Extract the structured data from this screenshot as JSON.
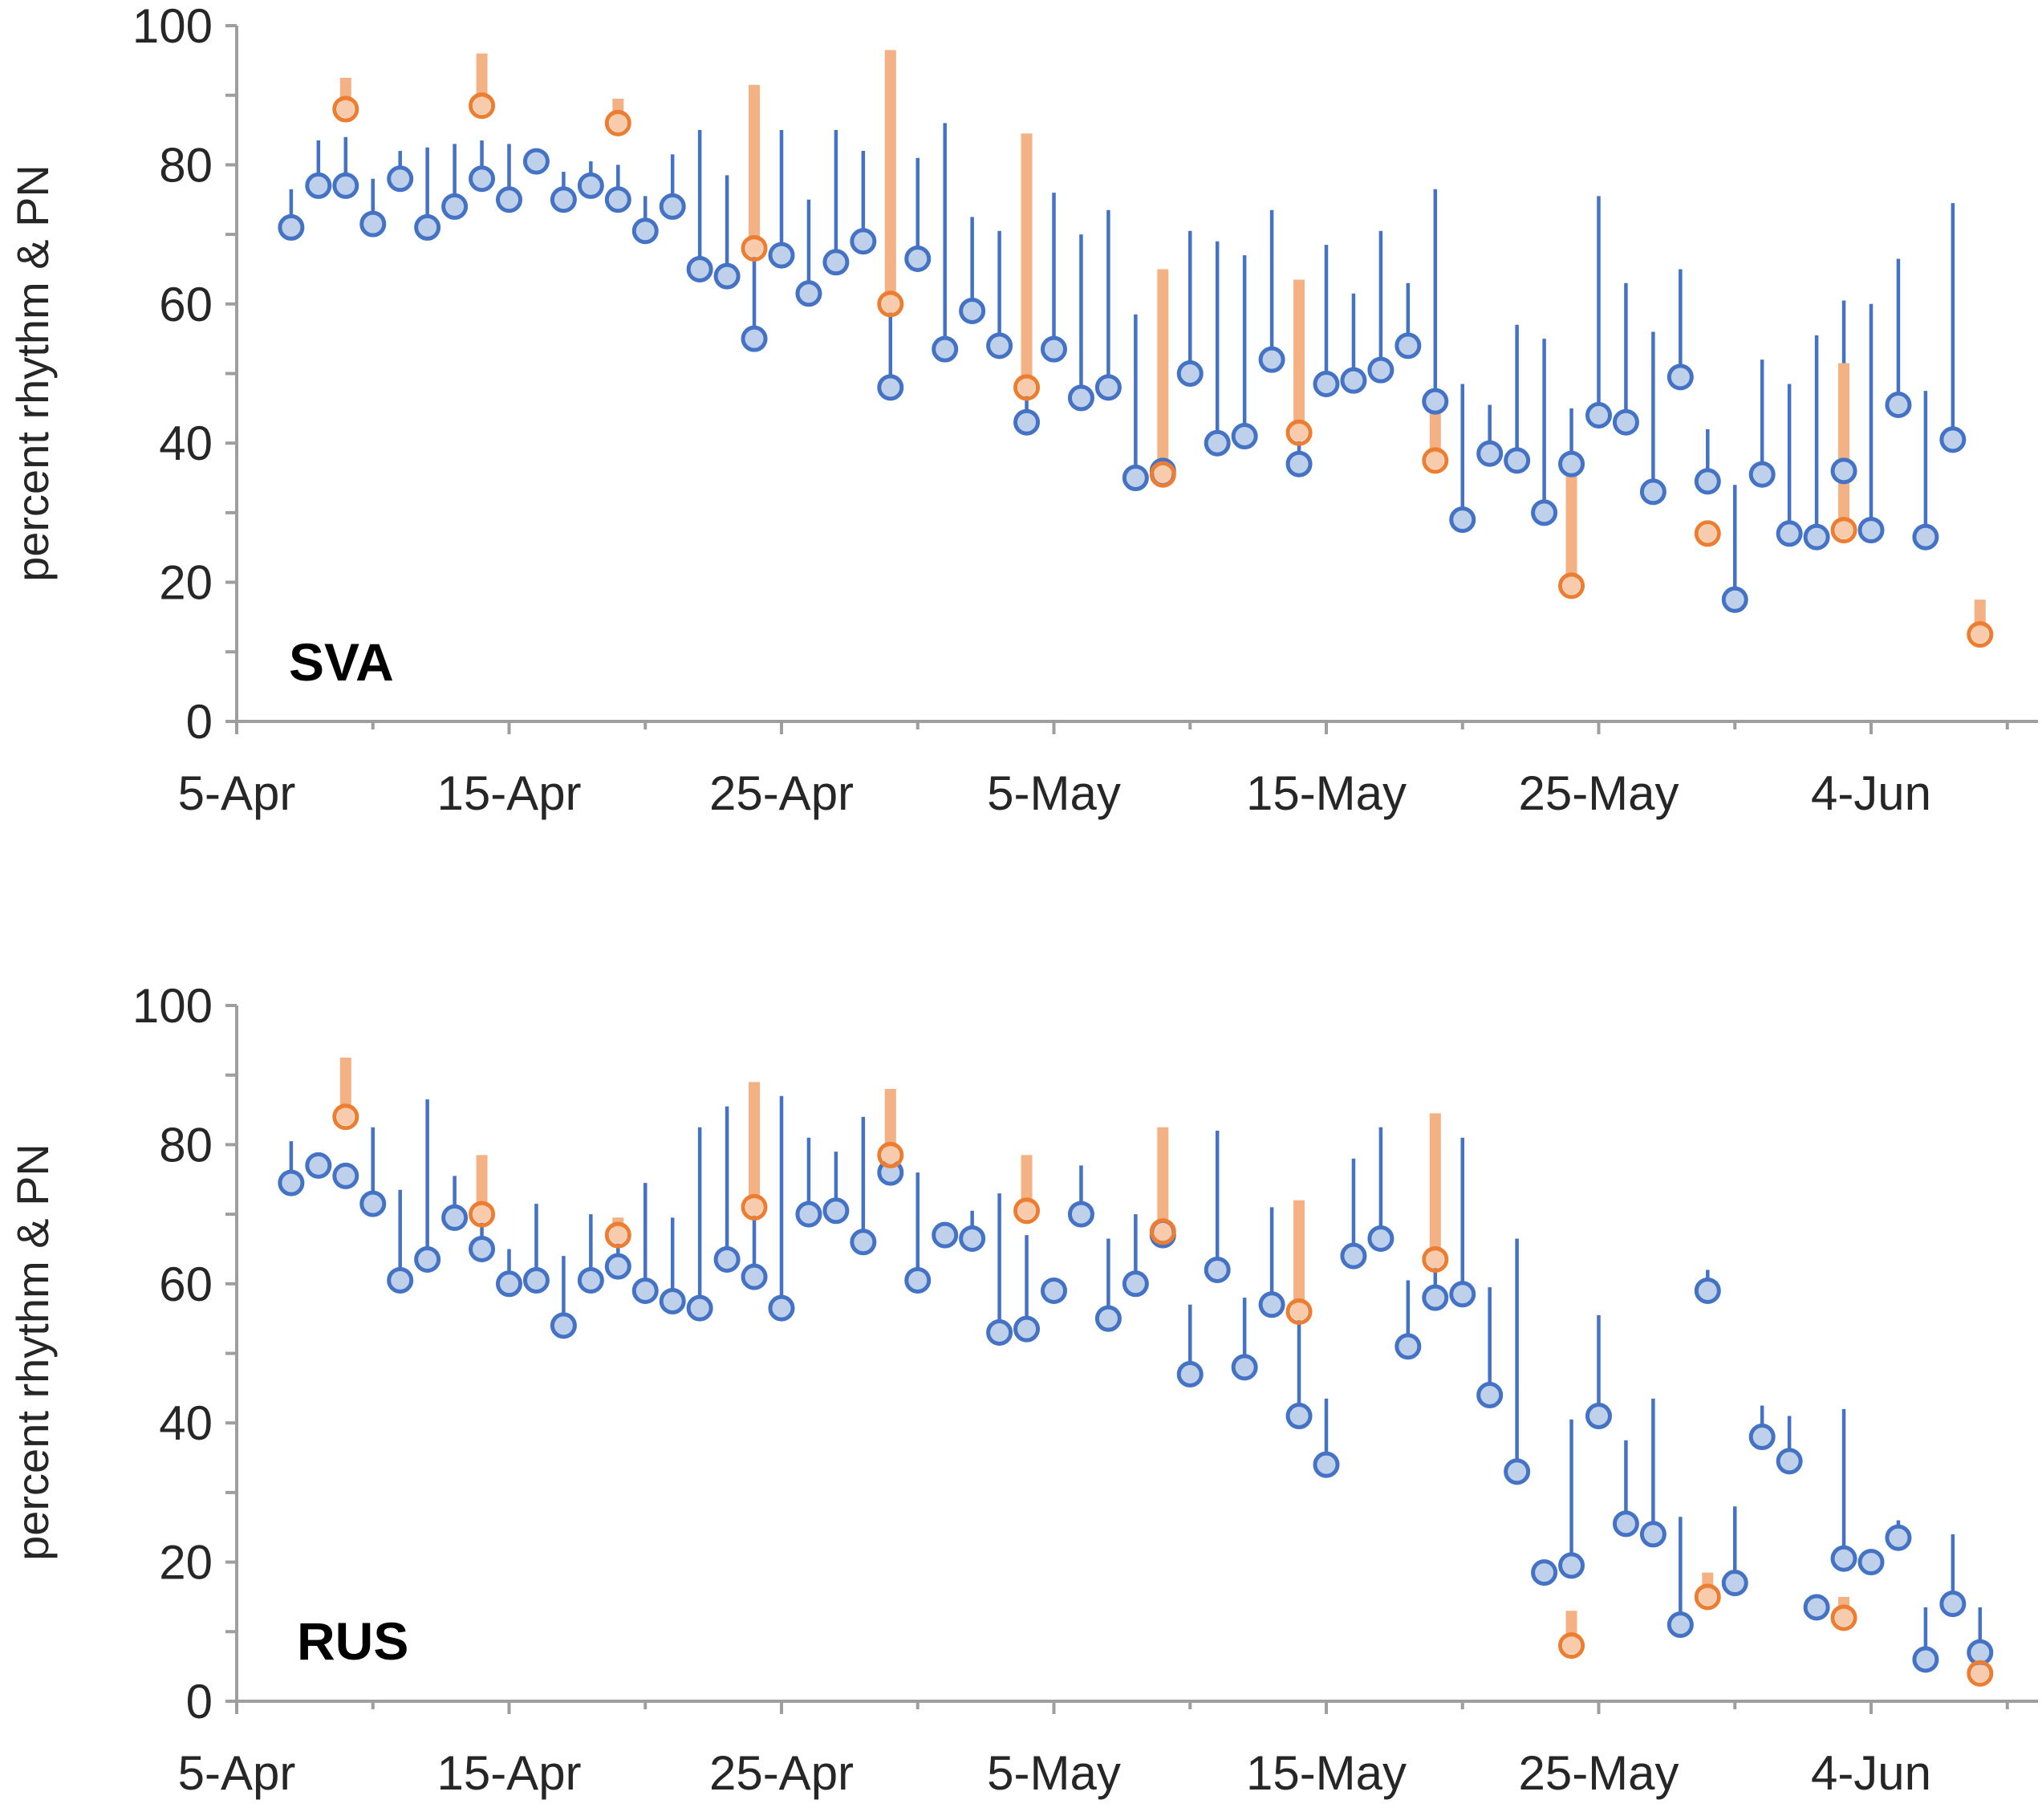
{
  "colors": {
    "blue": "#4472C4",
    "orange": "#ED7D31",
    "orange_bar": "#F4B183",
    "axis": "#9E9E9E"
  },
  "chart_data": [
    {
      "type": "scatter",
      "panel_label": "SVA",
      "ylabel": "percent rhythm & PN",
      "ylim": [
        0,
        100
      ],
      "y_ticks": [
        0,
        20,
        40,
        60,
        80,
        100
      ],
      "y_tick_labels": [
        "0",
        "20",
        "40",
        "60",
        "80",
        "100"
      ],
      "x_domain_days": [
        0,
        65
      ],
      "x_ticks": [
        0,
        10,
        20,
        30,
        40,
        50,
        60
      ],
      "x_tick_labels": [
        "5-Apr",
        "15-Apr",
        "25-Apr",
        "5-May",
        "15-May",
        "25-May",
        "4-Jun"
      ],
      "x_unit": "days since 5-Apr",
      "series": [
        {
          "name": "percent rhythm",
          "color": "blue",
          "points": [
            {
              "x": 2,
              "y": 71,
              "hi": 76.5
            },
            {
              "x": 3,
              "y": 77,
              "hi": 83.5
            },
            {
              "x": 4,
              "y": 77,
              "hi": 84
            },
            {
              "x": 5,
              "y": 71.5,
              "hi": 78
            },
            {
              "x": 6,
              "y": 78,
              "hi": 82
            },
            {
              "x": 7,
              "y": 71,
              "hi": 82.5
            },
            {
              "x": 8,
              "y": 74,
              "hi": 83
            },
            {
              "x": 9,
              "y": 78,
              "hi": 83.5
            },
            {
              "x": 10,
              "y": 75,
              "hi": 83
            },
            {
              "x": 11,
              "y": 80.5,
              "hi": 82
            },
            {
              "x": 12,
              "y": 75,
              "hi": 79
            },
            {
              "x": 13,
              "y": 77,
              "hi": 80.5
            },
            {
              "x": 14,
              "y": 75,
              "hi": 80
            },
            {
              "x": 15,
              "y": 70.5,
              "hi": 75.5
            },
            {
              "x": 16,
              "y": 74,
              "hi": 81.5
            },
            {
              "x": 17,
              "y": 65,
              "hi": 85
            },
            {
              "x": 18,
              "y": 64,
              "hi": 78.5
            },
            {
              "x": 19,
              "y": 55,
              "hi": 80
            },
            {
              "x": 20,
              "y": 67,
              "hi": 85
            },
            {
              "x": 21,
              "y": 61.5,
              "hi": 75
            },
            {
              "x": 22,
              "y": 66,
              "hi": 85
            },
            {
              "x": 23,
              "y": 69,
              "hi": 82
            },
            {
              "x": 24,
              "y": 48,
              "hi": 85
            },
            {
              "x": 25,
              "y": 66.5,
              "hi": 81
            },
            {
              "x": 26,
              "y": 53.5,
              "hi": 86
            },
            {
              "x": 27,
              "y": 59,
              "hi": 72.5
            },
            {
              "x": 28,
              "y": 54,
              "hi": 70.5
            },
            {
              "x": 29,
              "y": 43,
              "hi": 64
            },
            {
              "x": 30,
              "y": 53.5,
              "hi": 76
            },
            {
              "x": 31,
              "y": 46.5,
              "hi": 70
            },
            {
              "x": 32,
              "y": 48,
              "hi": 73.5
            },
            {
              "x": 33,
              "y": 35,
              "hi": 58.5
            },
            {
              "x": 34,
              "y": 36,
              "hi": 54.5
            },
            {
              "x": 35,
              "y": 50,
              "hi": 70.5
            },
            {
              "x": 36,
              "y": 40,
              "hi": 69
            },
            {
              "x": 37,
              "y": 41,
              "hi": 67
            },
            {
              "x": 38,
              "y": 52,
              "hi": 73.5
            },
            {
              "x": 39,
              "y": 37,
              "hi": 50
            },
            {
              "x": 40,
              "y": 48.5,
              "hi": 68.5
            },
            {
              "x": 41,
              "y": 49,
              "hi": 61.5
            },
            {
              "x": 42,
              "y": 50.5,
              "hi": 70.5
            },
            {
              "x": 43,
              "y": 54,
              "hi": 63
            },
            {
              "x": 44,
              "y": 46,
              "hi": 76.5
            },
            {
              "x": 45,
              "y": 29,
              "hi": 48.5
            },
            {
              "x": 46,
              "y": 38.5,
              "hi": 45.5
            },
            {
              "x": 47,
              "y": 37.5,
              "hi": 57
            },
            {
              "x": 48,
              "y": 30,
              "hi": 55
            },
            {
              "x": 49,
              "y": 37,
              "hi": 45
            },
            {
              "x": 50,
              "y": 44,
              "hi": 75.5
            },
            {
              "x": 51,
              "y": 43,
              "hi": 63
            },
            {
              "x": 52,
              "y": 33,
              "hi": 56
            },
            {
              "x": 53,
              "y": 49.5,
              "hi": 65
            },
            {
              "x": 54,
              "y": 34.5,
              "hi": 42
            },
            {
              "x": 55,
              "y": 17.5,
              "hi": 34
            },
            {
              "x": 56,
              "y": 35.5,
              "hi": 52
            },
            {
              "x": 57,
              "y": 27,
              "hi": 48.5
            },
            {
              "x": 58,
              "y": 26.5,
              "hi": 55.5
            },
            {
              "x": 59,
              "y": 36,
              "hi": 60.5
            },
            {
              "x": 60,
              "y": 27.5,
              "hi": 60
            },
            {
              "x": 61,
              "y": 45.5,
              "hi": 66.5
            },
            {
              "x": 62,
              "y": 26.5,
              "hi": 47.5
            },
            {
              "x": 63,
              "y": 40.5,
              "hi": 74.5
            }
          ]
        },
        {
          "name": "PN",
          "color": "orange",
          "points": [
            {
              "x": 4,
              "y": 88,
              "hi": 92.5
            },
            {
              "x": 9,
              "y": 88.5,
              "hi": 96
            },
            {
              "x": 14,
              "y": 86,
              "hi": 89.5
            },
            {
              "x": 19,
              "y": 68,
              "hi": 91.5
            },
            {
              "x": 24,
              "y": 60,
              "hi": 96.5
            },
            {
              "x": 29,
              "y": 48,
              "hi": 84.5
            },
            {
              "x": 34,
              "y": 35.5,
              "hi": 65
            },
            {
              "x": 39,
              "y": 41.5,
              "hi": 63.5
            },
            {
              "x": 44,
              "y": 37.5,
              "hi": 46
            },
            {
              "x": 49,
              "y": 19.5,
              "hi": 36
            },
            {
              "x": 54,
              "y": 27,
              "hi": 27.5
            },
            {
              "x": 59,
              "y": 27.5,
              "hi": 51.5
            },
            {
              "x": 64,
              "y": 12.5,
              "hi": 17.5
            }
          ]
        }
      ]
    },
    {
      "type": "scatter",
      "panel_label": "RUS",
      "ylabel": "percent rhythm & PN",
      "ylim": [
        0,
        100
      ],
      "y_ticks": [
        0,
        20,
        40,
        60,
        80,
        100
      ],
      "y_tick_labels": [
        "0",
        "20",
        "40",
        "60",
        "80",
        "100"
      ],
      "x_domain_days": [
        0,
        65
      ],
      "x_ticks": [
        0,
        10,
        20,
        30,
        40,
        50,
        60
      ],
      "x_tick_labels": [
        "5-Apr",
        "15-Apr",
        "25-Apr",
        "5-May",
        "15-May",
        "25-May",
        "4-Jun"
      ],
      "x_unit": "days since 5-Apr",
      "series": [
        {
          "name": "percent rhythm",
          "color": "blue",
          "points": [
            {
              "x": 2,
              "y": 74.5,
              "hi": 80.5
            },
            {
              "x": 3,
              "y": 77,
              "hi": 78.5
            },
            {
              "x": 4,
              "y": 75.5,
              "hi": 77
            },
            {
              "x": 5,
              "y": 71.5,
              "hi": 82.5
            },
            {
              "x": 6,
              "y": 60.5,
              "hi": 73.5
            },
            {
              "x": 7,
              "y": 63.5,
              "hi": 86.5
            },
            {
              "x": 8,
              "y": 69.5,
              "hi": 75.5
            },
            {
              "x": 9,
              "y": 65,
              "hi": 70
            },
            {
              "x": 10,
              "y": 60,
              "hi": 65
            },
            {
              "x": 11,
              "y": 60.5,
              "hi": 71.5
            },
            {
              "x": 12,
              "y": 54,
              "hi": 64
            },
            {
              "x": 13,
              "y": 60.5,
              "hi": 70
            },
            {
              "x": 14,
              "y": 62.5,
              "hi": 69.5
            },
            {
              "x": 15,
              "y": 59,
              "hi": 74.5
            },
            {
              "x": 16,
              "y": 57.5,
              "hi": 69.5
            },
            {
              "x": 17,
              "y": 56.5,
              "hi": 82.5
            },
            {
              "x": 18,
              "y": 63.5,
              "hi": 85.5
            },
            {
              "x": 19,
              "y": 61,
              "hi": 84
            },
            {
              "x": 20,
              "y": 56.5,
              "hi": 87
            },
            {
              "x": 21,
              "y": 70,
              "hi": 81
            },
            {
              "x": 22,
              "y": 70.5,
              "hi": 79
            },
            {
              "x": 23,
              "y": 66,
              "hi": 84
            },
            {
              "x": 24,
              "y": 76,
              "hi": 77
            },
            {
              "x": 25,
              "y": 60.5,
              "hi": 76
            },
            {
              "x": 26,
              "y": 67,
              "hi": 68.5
            },
            {
              "x": 27,
              "y": 66.5,
              "hi": 70.5
            },
            {
              "x": 28,
              "y": 53,
              "hi": 73
            },
            {
              "x": 29,
              "y": 53.5,
              "hi": 67
            },
            {
              "x": 30,
              "y": 59,
              "hi": 60
            },
            {
              "x": 31,
              "y": 70,
              "hi": 77
            },
            {
              "x": 32,
              "y": 55,
              "hi": 66.5
            },
            {
              "x": 33,
              "y": 60,
              "hi": 70
            },
            {
              "x": 34,
              "y": 67,
              "hi": 70
            },
            {
              "x": 35,
              "y": 47,
              "hi": 57
            },
            {
              "x": 36,
              "y": 62,
              "hi": 82
            },
            {
              "x": 37,
              "y": 48,
              "hi": 58
            },
            {
              "x": 38,
              "y": 57,
              "hi": 71
            },
            {
              "x": 39,
              "y": 41,
              "hi": 58
            },
            {
              "x": 40,
              "y": 34,
              "hi": 43.5
            },
            {
              "x": 41,
              "y": 64,
              "hi": 78
            },
            {
              "x": 42,
              "y": 66.5,
              "hi": 82.5
            },
            {
              "x": 43,
              "y": 51,
              "hi": 60.5
            },
            {
              "x": 44,
              "y": 58,
              "hi": 76
            },
            {
              "x": 45,
              "y": 58.5,
              "hi": 81
            },
            {
              "x": 46,
              "y": 44,
              "hi": 59.5
            },
            {
              "x": 47,
              "y": 33,
              "hi": 66.5
            },
            {
              "x": 48,
              "y": 18.5,
              "hi": 19.5
            },
            {
              "x": 49,
              "y": 19.5,
              "hi": 40.5
            },
            {
              "x": 50,
              "y": 41,
              "hi": 55.5
            },
            {
              "x": 51,
              "y": 25.5,
              "hi": 37.5
            },
            {
              "x": 52,
              "y": 24,
              "hi": 43.5
            },
            {
              "x": 53,
              "y": 11,
              "hi": 26.5
            },
            {
              "x": 54,
              "y": 59,
              "hi": 62
            },
            {
              "x": 55,
              "y": 17,
              "hi": 28
            },
            {
              "x": 56,
              "y": 38,
              "hi": 42.5
            },
            {
              "x": 57,
              "y": 34.5,
              "hi": 41
            },
            {
              "x": 58,
              "y": 13.5,
              "hi": 14
            },
            {
              "x": 59,
              "y": 20.5,
              "hi": 42
            },
            {
              "x": 60,
              "y": 20,
              "hi": 21.5
            },
            {
              "x": 61,
              "y": 23.5,
              "hi": 26
            },
            {
              "x": 62,
              "y": 6,
              "hi": 13.5
            },
            {
              "x": 63,
              "y": 14,
              "hi": 24
            },
            {
              "x": 64,
              "y": 7,
              "hi": 13.5
            }
          ]
        },
        {
          "name": "PN",
          "color": "orange",
          "points": [
            {
              "x": 4,
              "y": 84,
              "hi": 92.5
            },
            {
              "x": 9,
              "y": 70,
              "hi": 78.5
            },
            {
              "x": 14,
              "y": 67,
              "hi": 69.5
            },
            {
              "x": 19,
              "y": 71,
              "hi": 89
            },
            {
              "x": 24,
              "y": 78.5,
              "hi": 88
            },
            {
              "x": 29,
              "y": 70.5,
              "hi": 78.5
            },
            {
              "x": 34,
              "y": 67.5,
              "hi": 82.5
            },
            {
              "x": 39,
              "y": 56,
              "hi": 72
            },
            {
              "x": 44,
              "y": 63.5,
              "hi": 84.5
            },
            {
              "x": 49,
              "y": 8,
              "hi": 13
            },
            {
              "x": 54,
              "y": 15,
              "hi": 18.5
            },
            {
              "x": 59,
              "y": 12,
              "hi": 15
            },
            {
              "x": 64,
              "y": 4,
              "hi": 6
            }
          ]
        }
      ]
    }
  ]
}
